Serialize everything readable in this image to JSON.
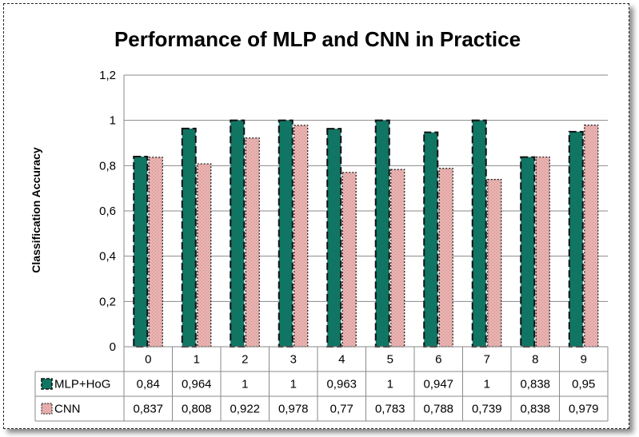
{
  "chart_data": {
    "type": "bar",
    "title": "Performance of MLP and CNN in Practice",
    "ylabel": "Classification Accuracy",
    "xlabel": "",
    "ylim": [
      0,
      1.2
    ],
    "yticks": [
      "0",
      "0,2",
      "0,4",
      "0,6",
      "0,8",
      "1",
      "1,2"
    ],
    "ytick_values": [
      0,
      0.2,
      0.4,
      0.6,
      0.8,
      1.0,
      1.2
    ],
    "grid": true,
    "legend": "data-table",
    "categories": [
      "0",
      "1",
      "2",
      "3",
      "4",
      "5",
      "6",
      "7",
      "8",
      "9"
    ],
    "series": [
      {
        "name": "MLP+HoG",
        "color": "#117564",
        "values": [
          0.84,
          0.964,
          1,
          1,
          0.963,
          1,
          0.947,
          1,
          0.838,
          0.95
        ],
        "labels": [
          "0,84",
          "0,964",
          "1",
          "1",
          "0,963",
          "1",
          "0,947",
          "1",
          "0,838",
          "0,95"
        ]
      },
      {
        "name": "CNN",
        "color": "#e5aaa8",
        "values": [
          0.837,
          0.808,
          0.922,
          0.978,
          0.77,
          0.783,
          0.788,
          0.739,
          0.838,
          0.979
        ],
        "labels": [
          "0,837",
          "0,808",
          "0,922",
          "0,978",
          "0,77",
          "0,783",
          "0,788",
          "0,739",
          "0,838",
          "0,979"
        ]
      }
    ]
  }
}
